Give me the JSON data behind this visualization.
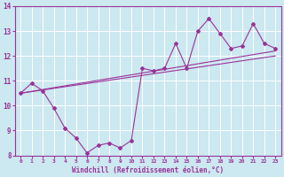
{
  "xlabel": "Windchill (Refroidissement éolien,°C)",
  "bg_color": "#cce8f0",
  "line_color": "#993399",
  "grid_color": "#ffffff",
  "x_data": [
    0,
    1,
    2,
    3,
    4,
    5,
    6,
    7,
    8,
    9,
    10,
    11,
    12,
    13,
    14,
    15,
    16,
    17,
    18,
    19,
    20,
    21,
    22,
    23
  ],
  "y_jagged": [
    10.5,
    10.9,
    10.6,
    9.9,
    9.1,
    8.7,
    8.1,
    8.4,
    8.5,
    8.3,
    8.6,
    11.5,
    11.4,
    11.5,
    12.5,
    11.5,
    13.0,
    13.5,
    12.9,
    12.3,
    12.4,
    13.3,
    12.5,
    12.3
  ],
  "line1_x": [
    0,
    23
  ],
  "line1_y": [
    10.5,
    12.2
  ],
  "line2_x": [
    0,
    23
  ],
  "line2_y": [
    10.5,
    12.0
  ],
  "xlim": [
    -0.5,
    23.5
  ],
  "ylim": [
    8,
    14
  ],
  "yticks": [
    8,
    9,
    10,
    11,
    12,
    13,
    14
  ],
  "xticks": [
    0,
    1,
    2,
    3,
    4,
    5,
    6,
    7,
    8,
    9,
    10,
    11,
    12,
    13,
    14,
    15,
    16,
    17,
    18,
    19,
    20,
    21,
    22,
    23
  ]
}
